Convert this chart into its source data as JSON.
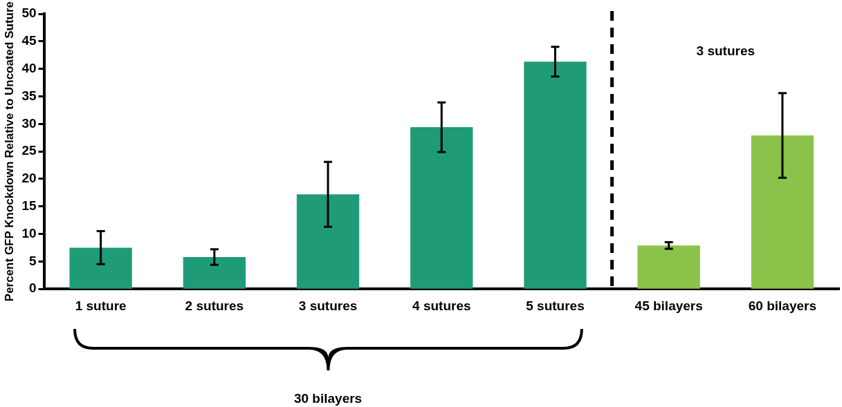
{
  "chart_data": {
    "type": "bar",
    "ylabel": "Percent GFP Knockdown Relative to Uncoated Suture",
    "categories": [
      "1 suture",
      "2 sutures",
      "3 sutures",
      "4 sutures",
      "5 sutures",
      "45 bilayers",
      "60 bilayers"
    ],
    "values": [
      7.5,
      5.8,
      17.2,
      29.4,
      41.3,
      7.9,
      27.9
    ],
    "errors": [
      3.0,
      1.4,
      5.9,
      4.5,
      2.7,
      0.6,
      7.7
    ],
    "colors": [
      "#1f9b78",
      "#1f9b78",
      "#1f9b78",
      "#1f9b78",
      "#1f9b78",
      "#8bc34a",
      "#8bc34a"
    ],
    "ylim": [
      0,
      50
    ],
    "yticks": [
      0,
      5,
      10,
      15,
      20,
      25,
      30,
      35,
      40,
      45,
      50
    ],
    "annotations": [
      "3 sutures",
      "30 bilayers"
    ],
    "grid": false,
    "legend": false
  }
}
